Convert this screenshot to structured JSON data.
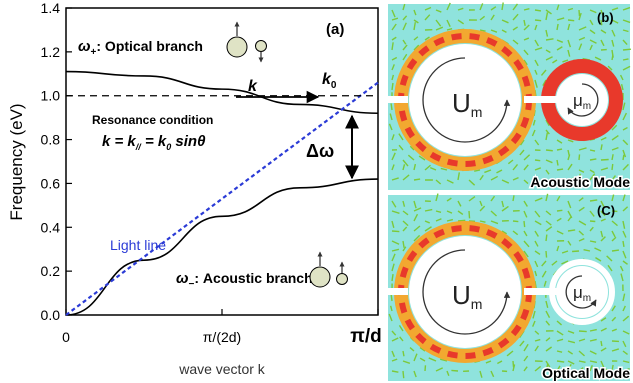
{
  "panel_a": {
    "label": "(a)",
    "ylabel": "Frequency  (eV)",
    "xlabel": "wave vector k",
    "yticks": [
      "0.0",
      "0.2",
      "0.4",
      "0.6",
      "0.8",
      "1.0",
      "1.2",
      "1.4"
    ],
    "xticks": [
      "0",
      "π/(2d)",
      "π/d"
    ],
    "optical_label": "ω",
    "optical_sub": "+",
    "optical_text": ": Optical branch",
    "acoustic_label": "ω",
    "acoustic_sub": "−",
    "acoustic_text": ": Acoustic branch",
    "light_line_label": "Light line",
    "k_label": "k",
    "k0_label": "k",
    "k0_sub": "0",
    "resonance_title": "Resonance condition",
    "resonance_eq_a": "k = k",
    "resonance_eq_sub": "//",
    "resonance_eq_b": " = k",
    "resonance_eq_sub2": "0",
    "resonance_eq_c": " sin",
    "resonance_eq_theta": "θ",
    "delta_omega": "Δω"
  },
  "panel_b": {
    "label": "(b)",
    "mode": "Acoustic Mode",
    "big_circle": "U",
    "big_sub": "m",
    "small_circle": "μ",
    "small_sub": "m"
  },
  "panel_c": {
    "label": "(C)",
    "mode": "Optical Mode",
    "big_circle": "U",
    "big_sub": "m",
    "small_circle": "μ",
    "small_sub": "m"
  },
  "chart_data": {
    "type": "line",
    "xlabel": "wave vector k",
    "ylabel": "Frequency  (eV)",
    "ylim": [
      0,
      1.4
    ],
    "xticks": [
      "0",
      "π/(2d)",
      "π/d"
    ],
    "series": [
      {
        "name": "ω+ : Optical branch",
        "x_fraction_of_pi_over_d": [
          0,
          0.25,
          0.5,
          0.75,
          1.0
        ],
        "values": [
          1.11,
          1.09,
          1.03,
          0.96,
          0.92
        ]
      },
      {
        "name": "ω− : Acoustic branch",
        "x_fraction_of_pi_over_d": [
          0,
          0.25,
          0.5,
          0.75,
          1.0
        ],
        "values": [
          0.0,
          0.25,
          0.45,
          0.58,
          0.62
        ]
      },
      {
        "name": "Light line",
        "x_fraction_of_pi_over_d": [
          0,
          1.0
        ],
        "values": [
          0.0,
          1.06
        ]
      },
      {
        "name": "",
        "x_fraction_of_pi_over_d": [
          0,
          1.0
        ],
        "values": [
          1.0,
          1.0
        ]
      }
    ]
  },
  "colors": {
    "light_line": "#2b3bd6",
    "field_background": "#8fe3dd",
    "arrow_field": "#7cc93a",
    "hot": "#e8392b",
    "warm": "#f2a830"
  }
}
